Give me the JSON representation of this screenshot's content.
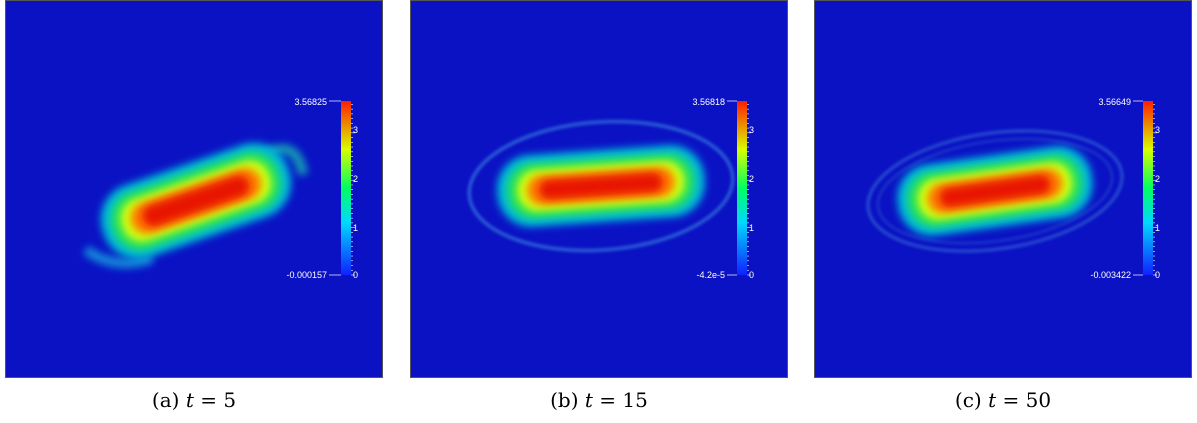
{
  "colors": {
    "background": "#0a12c4",
    "colormap": [
      "#1020ff",
      "#00d8ff",
      "#00ff60",
      "#d8ff00",
      "#ff1e00"
    ]
  },
  "panels": [
    {
      "label_prefix": "(a)",
      "label_var": "t",
      "label_rest": "= 5",
      "colorbar": {
        "max_label": "3.56825",
        "min_label": "-0.000157",
        "ticks": [
          "3",
          "2",
          "1",
          "0"
        ]
      }
    },
    {
      "label_prefix": "(b)",
      "label_var": "t",
      "label_rest": "= 15",
      "colorbar": {
        "max_label": "3.56818",
        "min_label": "-4.2e-5",
        "ticks": [
          "3",
          "2",
          "1",
          "0"
        ]
      }
    },
    {
      "label_prefix": "(c)",
      "label_var": "t",
      "label_rest": "= 50",
      "colorbar": {
        "max_label": "3.56649",
        "min_label": "-0.003422",
        "ticks": [
          "3",
          "2",
          "1",
          "0"
        ]
      }
    }
  ]
}
